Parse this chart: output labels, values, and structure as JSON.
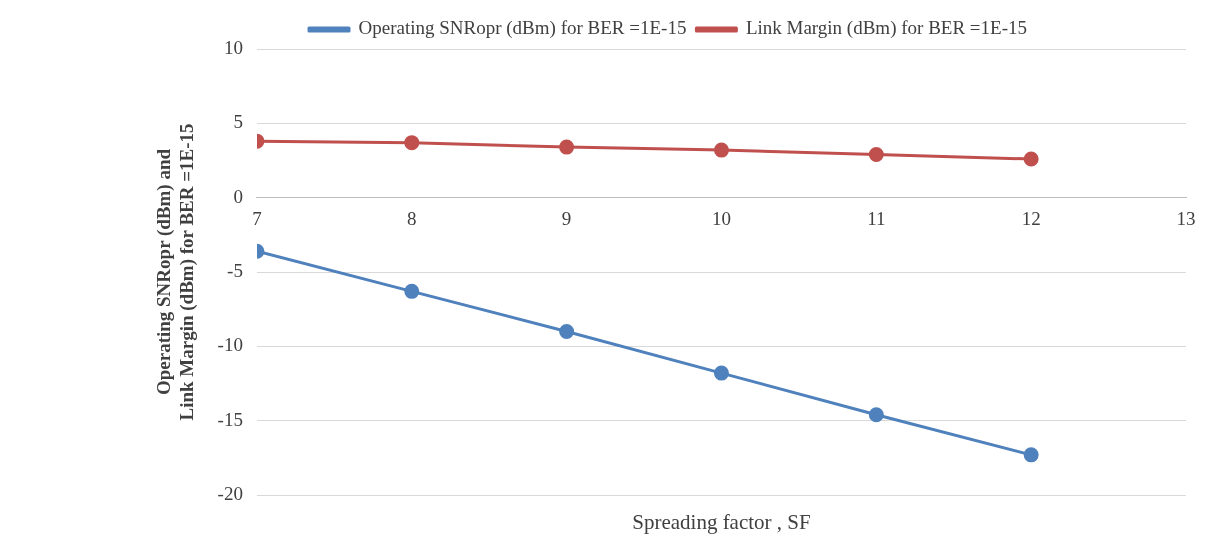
{
  "chart_data": {
    "type": "line",
    "xlabel": "Spreading factor , SF",
    "ylabel": "Operating SNRopr (dBm) and Link Margin (dBm) for BER =1E-15",
    "x": [
      7,
      8,
      9,
      10,
      11,
      12
    ],
    "series": [
      {
        "name": "Operating SNRopr (dBm) for BER =1E-15",
        "color": "#4f81bd",
        "values": [
          -3.6,
          -6.3,
          -9.0,
          -11.8,
          -14.6,
          -17.3
        ]
      },
      {
        "name": "Link Margin (dBm) for BER =1E-15",
        "color": "#c0504d",
        "values": [
          3.8,
          3.7,
          3.4,
          3.2,
          2.9,
          2.6
        ]
      }
    ],
    "xlim": [
      7,
      13
    ],
    "xticks": [
      7,
      8,
      9,
      10,
      11,
      12,
      13
    ],
    "ylim": [
      -20,
      10
    ],
    "yticks": [
      -20,
      -15,
      -10,
      -5,
      0,
      5,
      10
    ],
    "grid": "y",
    "legend": "top",
    "marker": "circle",
    "line_style": "solid"
  }
}
